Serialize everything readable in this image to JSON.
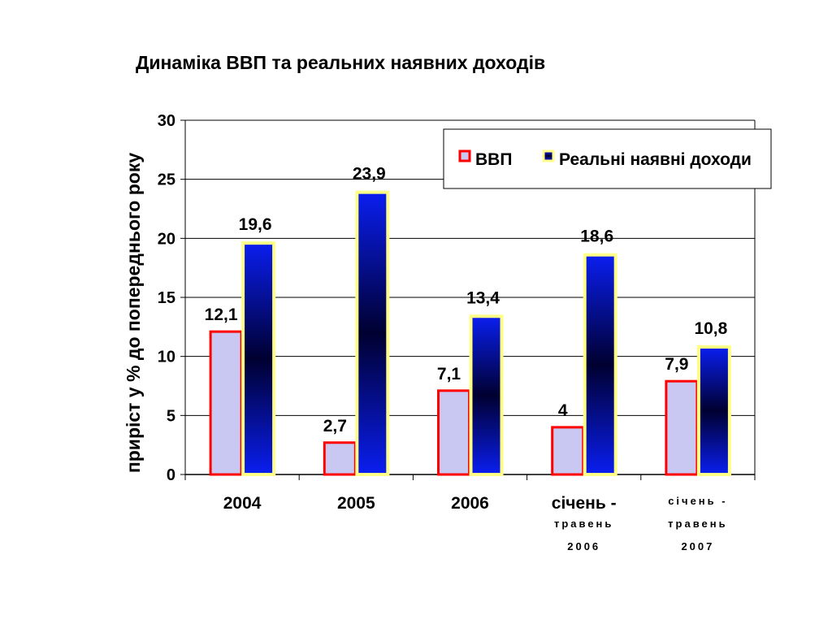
{
  "chart_data": {
    "type": "bar",
    "title": "Динаміка ВВП та реальних наявних доходів",
    "ylabel": "приріст у % до попереднього року",
    "xlabel": "",
    "ylim": [
      0,
      30
    ],
    "yticks": [
      "0",
      "5",
      "10",
      "15",
      "20",
      "25",
      "30"
    ],
    "categories": [
      [
        "2004"
      ],
      [
        "2005"
      ],
      [
        "2006"
      ],
      [
        "січень -",
        "травень",
        "2006"
      ],
      [
        "січень -",
        "травень",
        "2007"
      ]
    ],
    "series": [
      {
        "name": "ВВП",
        "values": [
          12.1,
          2.7,
          7.1,
          4,
          7.9
        ],
        "labels": [
          "12,1",
          "2,7",
          "7,1",
          "4",
          "7,9"
        ]
      },
      {
        "name": "Реальні наявні доходи",
        "values": [
          19.6,
          23.9,
          13.4,
          18.6,
          10.8
        ],
        "labels": [
          "19,6",
          "23,9",
          "13,4",
          "18,6",
          "10,8"
        ]
      }
    ],
    "legend_position": "top-right",
    "grid": true,
    "colors": {
      "gdp_fill": "#c8c8f2",
      "gdp_border": "#ff0000",
      "income_gradient_edge": "#0a1ef0",
      "income_gradient_center": "#000030",
      "income_border": "#ffff88"
    }
  }
}
